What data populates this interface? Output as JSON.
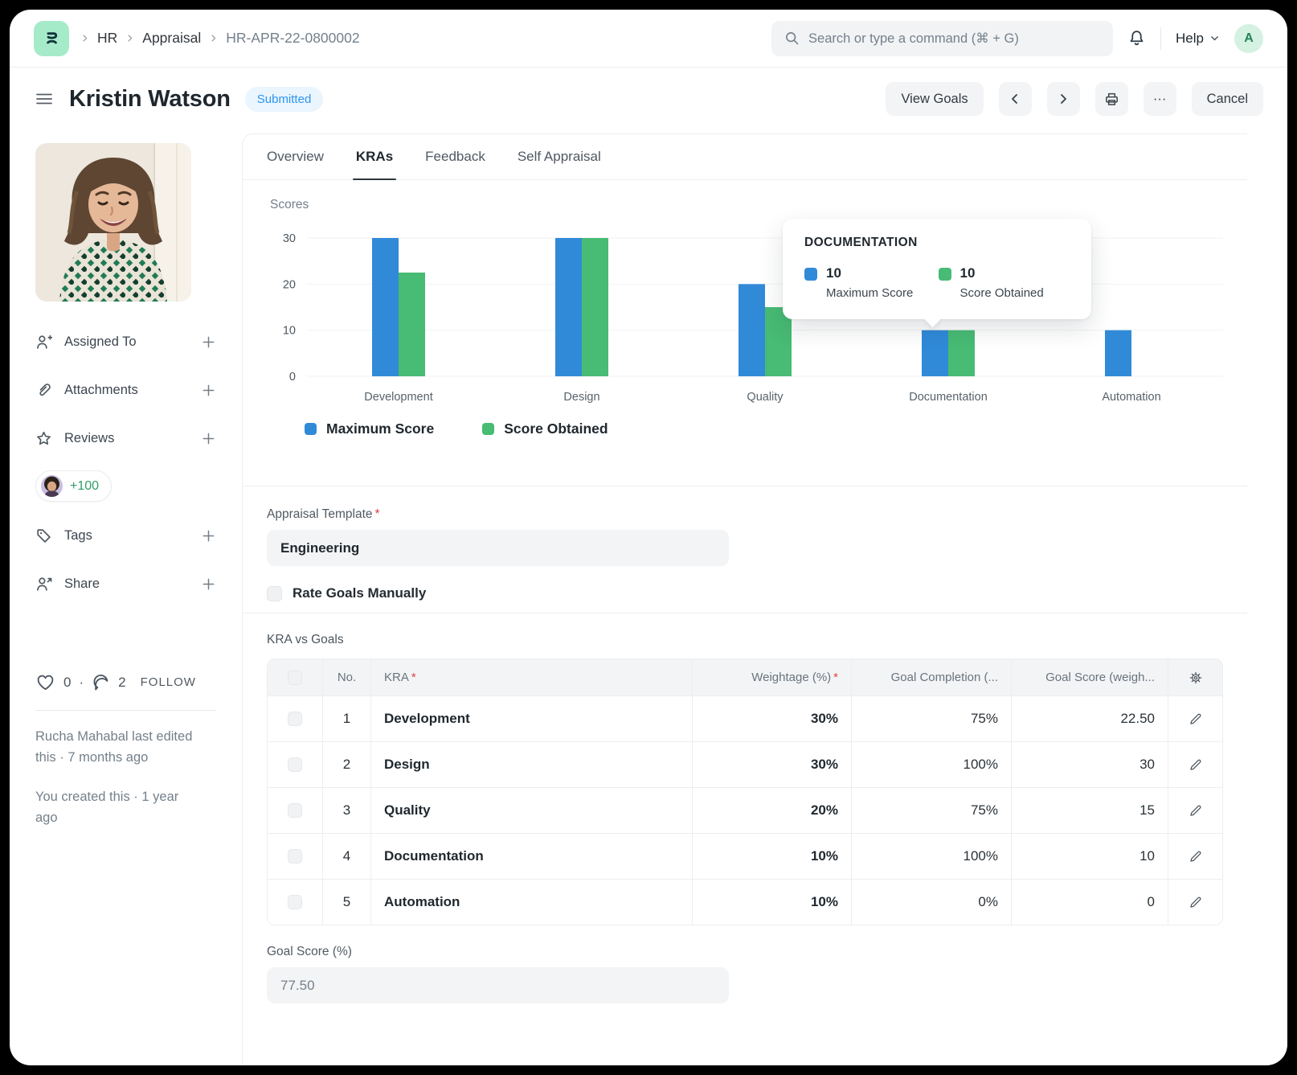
{
  "navbar": {
    "breadcrumb": [
      "HR",
      "Appraisal",
      "HR-APR-22-0800002"
    ],
    "search_placeholder": "Search or type a command (⌘ + G)",
    "help_label": "Help",
    "avatar_initial": "A",
    "icons": [
      "app-logo",
      "search-icon",
      "bell-icon",
      "chevron-down-icon"
    ]
  },
  "header": {
    "title": "Kristin Watson",
    "status": "Submitted",
    "view_goals_label": "View Goals",
    "cancel_label": "Cancel",
    "ellipsis_label": "···",
    "icon_buttons": [
      "chevron-left-icon",
      "chevron-right-icon",
      "printer-icon",
      "ellipsis-icon"
    ]
  },
  "sidebar": {
    "items": [
      {
        "label": "Assigned To",
        "icon": "user-plus-icon"
      },
      {
        "label": "Attachments",
        "icon": "paperclip-icon"
      },
      {
        "label": "Reviews",
        "icon": "star-icon"
      },
      {
        "label": "Tags",
        "icon": "tag-icon"
      },
      {
        "label": "Share",
        "icon": "user-share-icon"
      }
    ],
    "reviews_more": "+100",
    "likes_count": "0",
    "dot": "·",
    "comments_count": "2",
    "follow_label": "FOLLOW",
    "last_edited": "Rucha Mahabal last edited this · 7 months ago",
    "created": "You created this · 1 year ago"
  },
  "tabs": [
    {
      "label": "Overview",
      "active": false
    },
    {
      "label": "KRAs",
      "active": true
    },
    {
      "label": "Feedback",
      "active": false
    },
    {
      "label": "Self Appraisal",
      "active": false
    }
  ],
  "chart_data": {
    "type": "bar",
    "title": "Scores",
    "categories": [
      "Development",
      "Design",
      "Quality",
      "Documentation",
      "Automation"
    ],
    "series": [
      {
        "name": "Maximum Score",
        "color": "#318AD8",
        "values": [
          30,
          30,
          20,
          10,
          10
        ]
      },
      {
        "name": "Score Obtained",
        "color": "#48BB74",
        "values": [
          22.5,
          30,
          15,
          10,
          0
        ]
      }
    ],
    "ylim": [
      0,
      30
    ],
    "yticks": [
      0,
      10,
      20,
      30
    ],
    "grid": true,
    "legend_position": "bottom"
  },
  "tooltip": {
    "title": "DOCUMENTATION",
    "entries": [
      {
        "value": "10",
        "label": "Maximum Score",
        "color": "#318AD8"
      },
      {
        "value": "10",
        "label": "Score Obtained",
        "color": "#48BB74"
      }
    ]
  },
  "form": {
    "template_label": "Appraisal Template",
    "template_required": "*",
    "template_value": "Engineering",
    "rate_goals_label": "Rate Goals Manually",
    "rate_goals_checked": false
  },
  "table": {
    "section_label": "KRA vs Goals",
    "columns": [
      {
        "label": "No.",
        "required": false
      },
      {
        "label": "KRA",
        "required": true
      },
      {
        "label": "Weightage (%)",
        "required": true
      },
      {
        "label": "Goal Completion (...",
        "required": false
      },
      {
        "label": "Goal Score (weigh...",
        "required": false
      }
    ],
    "rows": [
      {
        "no": "1",
        "kra": "Development",
        "weightage": "30%",
        "completion": "75%",
        "score": "22.50"
      },
      {
        "no": "2",
        "kra": "Design",
        "weightage": "30%",
        "completion": "100%",
        "score": "30"
      },
      {
        "no": "3",
        "kra": "Quality",
        "weightage": "20%",
        "completion": "75%",
        "score": "15"
      },
      {
        "no": "4",
        "kra": "Documentation",
        "weightage": "10%",
        "completion": "100%",
        "score": "10"
      },
      {
        "no": "5",
        "kra": "Automation",
        "weightage": "10%",
        "completion": "0%",
        "score": "0"
      }
    ]
  },
  "goal_score": {
    "label": "Goal Score (%)",
    "value": "77.50"
  },
  "colors": {
    "max_score": "#318AD8",
    "score_obtained": "#48BB74",
    "badge_text": "#2D95F0",
    "badge_bg": "#EAF5FE",
    "brand_mint": "#A6EBC9"
  }
}
